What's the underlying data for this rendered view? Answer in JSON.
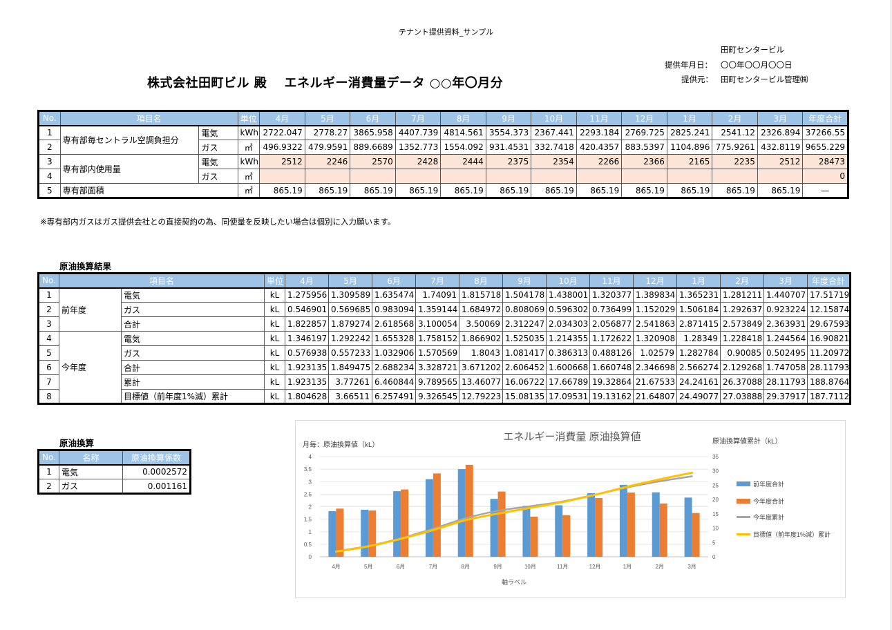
{
  "header": {
    "caption": "テナント提供資料_サンプル",
    "title": "株式会社田町ビル  殿　 エネルギー消費量データ ○○年〇月分",
    "building": "田町センタービル",
    "date_label": "提供年月日：",
    "date_value": "〇〇年〇〇月〇〇日",
    "provider_label": "提供元：",
    "provider_value": "田町センタービル管理㈱"
  },
  "months": [
    "4月",
    "5月",
    "6月",
    "7月",
    "8月",
    "9月",
    "10月",
    "11月",
    "12月",
    "1月",
    "2月",
    "3月"
  ],
  "table1": {
    "headers": {
      "no": "No.",
      "item": "項目名",
      "unit": "単位",
      "total": "年度合計"
    },
    "group1_label": "専有部毎セントラル空調負担分",
    "group2_label": "専有部内使用量",
    "rows": [
      {
        "no": "1",
        "type": "電気",
        "unit": "kWh",
        "values": [
          "2722.047",
          "2778.27",
          "3865.958",
          "4407.739",
          "4814.561",
          "3554.373",
          "2367.441",
          "2293.184",
          "2769.725",
          "2825.241",
          "2541.12",
          "2326.894"
        ],
        "total": "37266.55"
      },
      {
        "no": "2",
        "type": "ガス",
        "unit": "㎥",
        "values": [
          "496.9322",
          "479.9591",
          "889.6689",
          "1352.773",
          "1554.092",
          "931.4531",
          "332.7418",
          "420.4357",
          "883.5397",
          "1104.896",
          "775.9261",
          "432.8119"
        ],
        "total": "9655.229"
      },
      {
        "no": "3",
        "type": "電気",
        "unit": "kWh",
        "values": [
          "2512",
          "2246",
          "2570",
          "2428",
          "2444",
          "2375",
          "2354",
          "2266",
          "2366",
          "2165",
          "2235",
          "2512"
        ],
        "total": "28473"
      },
      {
        "no": "4",
        "type": "ガス",
        "unit": "㎥",
        "values": [
          "",
          "",
          "",
          "",
          "",
          "",
          "",
          "",
          "",
          "",
          "",
          ""
        ],
        "total": "0"
      },
      {
        "no": "5",
        "label": "専有部面積",
        "unit": "㎡",
        "values": [
          "865.19",
          "865.19",
          "865.19",
          "865.19",
          "865.19",
          "865.19",
          "865.19",
          "865.19",
          "865.19",
          "865.19",
          "865.19",
          "865.19"
        ],
        "total": "—"
      }
    ]
  },
  "note": "※専有部内ガスはガス提供会社との直接契約の為、同使量を反映したい場合は個別に入力願います。",
  "table2": {
    "title": "原油換算結果",
    "headers": {
      "no": "No.",
      "item": "項目名",
      "unit": "単位",
      "total": "年度合計"
    },
    "group1_label": "前年度",
    "group2_label": "今年度",
    "rows": [
      {
        "no": "1",
        "item": "電気",
        "unit": "kL",
        "values": [
          "1.275956",
          "1.309589",
          "1.635474",
          "1.74091",
          "1.815718",
          "1.504178",
          "1.438001",
          "1.320377",
          "1.389834",
          "1.365231",
          "1.281211",
          "1.440707"
        ],
        "total": "17.51719"
      },
      {
        "no": "2",
        "item": "ガス",
        "unit": "kL",
        "values": [
          "0.546901",
          "0.569685",
          "0.983094",
          "1.359144",
          "1.684972",
          "0.808069",
          "0.596302",
          "0.736499",
          "1.152029",
          "1.506184",
          "1.292637",
          "0.923224"
        ],
        "total": "12.15874"
      },
      {
        "no": "3",
        "item": "合計",
        "unit": "kL",
        "values": [
          "1.822857",
          "1.879274",
          "2.618568",
          "3.100054",
          "3.50069",
          "2.312247",
          "2.034303",
          "2.056877",
          "2.541863",
          "2.871415",
          "2.573849",
          "2.363931"
        ],
        "total": "29.67593"
      },
      {
        "no": "4",
        "item": "電気",
        "unit": "kL",
        "values": [
          "1.346197",
          "1.292242",
          "1.655328",
          "1.758152",
          "1.866902",
          "1.525035",
          "1.214355",
          "1.172622",
          "1.320908",
          "1.28349",
          "1.228418",
          "1.244564"
        ],
        "total": "16.90821"
      },
      {
        "no": "5",
        "item": "ガス",
        "unit": "kL",
        "values": [
          "0.576938",
          "0.557233",
          "1.032906",
          "1.570569",
          "1.8043",
          "1.081417",
          "0.386313",
          "0.488126",
          "1.02579",
          "1.282784",
          "0.90085",
          "0.502495"
        ],
        "total": "11.20972"
      },
      {
        "no": "6",
        "item": "合計",
        "unit": "kL",
        "values": [
          "1.923135",
          "1.849475",
          "2.688234",
          "3.328721",
          "3.671202",
          "2.606452",
          "1.600668",
          "1.660748",
          "2.346698",
          "2.566274",
          "2.129268",
          "1.747058"
        ],
        "total": "28.11793"
      },
      {
        "no": "7",
        "item": "累計",
        "unit": "kL",
        "values": [
          "1.923135",
          "3.77261",
          "6.460844",
          "9.789565",
          "13.46077",
          "16.06722",
          "17.66789",
          "19.32864",
          "21.67533",
          "24.24161",
          "26.37088",
          "28.11793"
        ],
        "total": "188.8764"
      },
      {
        "no": "8",
        "item": "目標値（前年度1%減）累計",
        "unit": "kL",
        "values": [
          "1.804628",
          "3.66511",
          "6.257491",
          "9.326545",
          "12.79223",
          "15.08135",
          "17.09531",
          "19.13162",
          "21.64807",
          "24.49077",
          "27.03888",
          "29.37917"
        ],
        "total": "187.7112"
      }
    ]
  },
  "table3": {
    "title": "原油換算",
    "headers": {
      "no": "No.",
      "name": "名称",
      "coef": "原油換算係数"
    },
    "rows": [
      {
        "no": "1",
        "name": "電気",
        "coef": "0.0002572"
      },
      {
        "no": "2",
        "name": "ガス",
        "coef": "0.001161"
      }
    ]
  },
  "colors": {
    "header_blue": "#9dc3e6",
    "pink_cell": "#fce4d6",
    "bar_prev": "#5b9bd5",
    "bar_curr": "#ed7d31",
    "line_cum": "#a5a5a5",
    "line_target": "#ffc000"
  },
  "chart_data": {
    "type": "bar",
    "title": "エネルギー消費量 原油換算値",
    "ylabel": "月毎：原油換算値（kL）",
    "y2label": "原油換算値累計（kL）",
    "xlabel": "軸ラベル",
    "categories": [
      "4月",
      "5月",
      "6月",
      "7月",
      "8月",
      "9月",
      "10月",
      "11月",
      "12月",
      "1月",
      "2月",
      "3月"
    ],
    "ylim": [
      0,
      4
    ],
    "yticks": [
      "0",
      "0.5",
      "1",
      "1.5",
      "2",
      "2.5",
      "3",
      "3.5",
      "4"
    ],
    "y2lim": [
      0,
      35
    ],
    "y2ticks": [
      "0",
      "5",
      "10",
      "15",
      "20",
      "25",
      "30",
      "35"
    ],
    "legend_position": "right",
    "series": [
      {
        "name": "前年度合計",
        "kind": "bar",
        "axis": "left",
        "values": [
          1.822857,
          1.879274,
          2.618568,
          3.100054,
          3.50069,
          2.312247,
          2.034303,
          2.056877,
          2.541863,
          2.871415,
          2.573849,
          2.363931
        ]
      },
      {
        "name": "今年度合計",
        "kind": "bar",
        "axis": "left",
        "values": [
          1.923135,
          1.849475,
          2.688234,
          3.328721,
          3.671202,
          2.606452,
          1.600668,
          1.660748,
          2.346698,
          2.566274,
          2.129268,
          1.747058
        ]
      },
      {
        "name": "今年度累計",
        "kind": "line",
        "axis": "right",
        "values": [
          1.923135,
          3.77261,
          6.460844,
          9.789565,
          13.46077,
          16.06722,
          17.66789,
          19.32864,
          21.67533,
          24.24161,
          26.37088,
          28.11793
        ]
      },
      {
        "name": "目標値（前年度1%減）累計",
        "kind": "line",
        "axis": "right",
        "values": [
          1.804628,
          3.66511,
          6.257491,
          9.326545,
          12.79223,
          15.08135,
          17.09531,
          19.13162,
          21.64807,
          24.49077,
          27.03888,
          29.37917
        ]
      }
    ]
  }
}
